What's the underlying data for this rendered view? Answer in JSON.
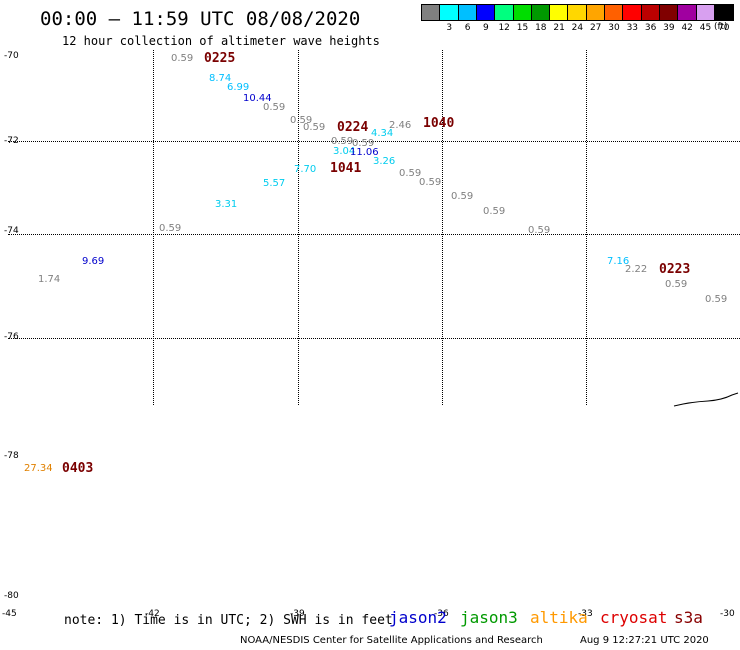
{
  "title": "00:00 – 11:59 UTC 08/08/2020",
  "subtitle": "12 hour collection of altimeter wave heights",
  "color_scale": {
    "unit": "(ft)",
    "bins": [
      {
        "label": "",
        "color": "#808080"
      },
      {
        "label": "3",
        "color": "#00ffff"
      },
      {
        "label": "6",
        "color": "#00bfff"
      },
      {
        "label": "9",
        "color": "#0000ff"
      },
      {
        "label": "12",
        "color": "#00ff7f"
      },
      {
        "label": "15",
        "color": "#00dd00"
      },
      {
        "label": "18",
        "color": "#009900"
      },
      {
        "label": "21",
        "color": "#ffff00"
      },
      {
        "label": "24",
        "color": "#ffd700"
      },
      {
        "label": "27",
        "color": "#ffa500"
      },
      {
        "label": "30",
        "color": "#ff6000"
      },
      {
        "label": "33",
        "color": "#ff0000"
      },
      {
        "label": "36",
        "color": "#bb0000"
      },
      {
        "label": "39",
        "color": "#800000"
      },
      {
        "label": "42",
        "color": "#a000a0"
      },
      {
        "label": "45",
        "color": "#d8a0f0"
      },
      {
        "label": "70",
        "color": "#000000"
      }
    ]
  },
  "latitude_labels": [
    "-70",
    "-72",
    "-74",
    "-76",
    "-78",
    "-80"
  ],
  "longitude_labels": [
    "-45",
    "-42",
    "-39",
    "-36",
    "-33",
    "-30"
  ],
  "pass_labels": [
    "0225",
    "0224",
    "1040",
    "1041",
    "0223",
    "0403"
  ],
  "wave_heights": [
    {
      "text": "0.59",
      "color": "#808080"
    },
    {
      "text": "8.74",
      "color": "#00bfff"
    },
    {
      "text": "6.99",
      "color": "#00bfff"
    },
    {
      "text": "10.44",
      "color": "#0000cc"
    },
    {
      "text": "0.59",
      "color": "#808080"
    },
    {
      "text": "0.59",
      "color": "#808080"
    },
    {
      "text": "0.59",
      "color": "#808080"
    },
    {
      "text": "2.46",
      "color": "#808080"
    },
    {
      "text": "0.59",
      "color": "#808080"
    },
    {
      "text": "0.59",
      "color": "#808080"
    },
    {
      "text": "4.34",
      "color": "#00ccee"
    },
    {
      "text": "3.04",
      "color": "#00ccee"
    },
    {
      "text": "11.06",
      "color": "#0000cc"
    },
    {
      "text": "3.26",
      "color": "#00ccee"
    },
    {
      "text": "7.70",
      "color": "#00ccee"
    },
    {
      "text": "5.57",
      "color": "#00ccee"
    },
    {
      "text": "0.59",
      "color": "#808080"
    },
    {
      "text": "0.59",
      "color": "#808080"
    },
    {
      "text": "0.59",
      "color": "#808080"
    },
    {
      "text": "0.59",
      "color": "#808080"
    },
    {
      "text": "3.31",
      "color": "#00ccee"
    },
    {
      "text": "0.59",
      "color": "#808080"
    },
    {
      "text": "0.59",
      "color": "#808080"
    },
    {
      "text": "9.69",
      "color": "#0000cc"
    },
    {
      "text": "1.74",
      "color": "#808080"
    },
    {
      "text": "7.16",
      "color": "#00bfff"
    },
    {
      "text": "2.22",
      "color": "#808080"
    },
    {
      "text": "0.59",
      "color": "#808080"
    },
    {
      "text": "0.59",
      "color": "#808080"
    },
    {
      "text": "27.34",
      "color": "#e08000"
    }
  ],
  "note": "note: 1) Time is in UTC; 2) SWH is in feet",
  "satellites": [
    {
      "name": "jason2",
      "color": "#0000cc"
    },
    {
      "name": "jason3",
      "color": "#009900"
    },
    {
      "name": "altika",
      "color": "#ff9900"
    },
    {
      "name": "cryosat",
      "color": "#dd0000"
    },
    {
      "name": "s3a",
      "color": "#880000"
    }
  ],
  "footer_left": "NOAA/NESDIS Center for Satellite Applications and Research",
  "footer_right": "Aug  9 12:27:21 UTC 2020"
}
